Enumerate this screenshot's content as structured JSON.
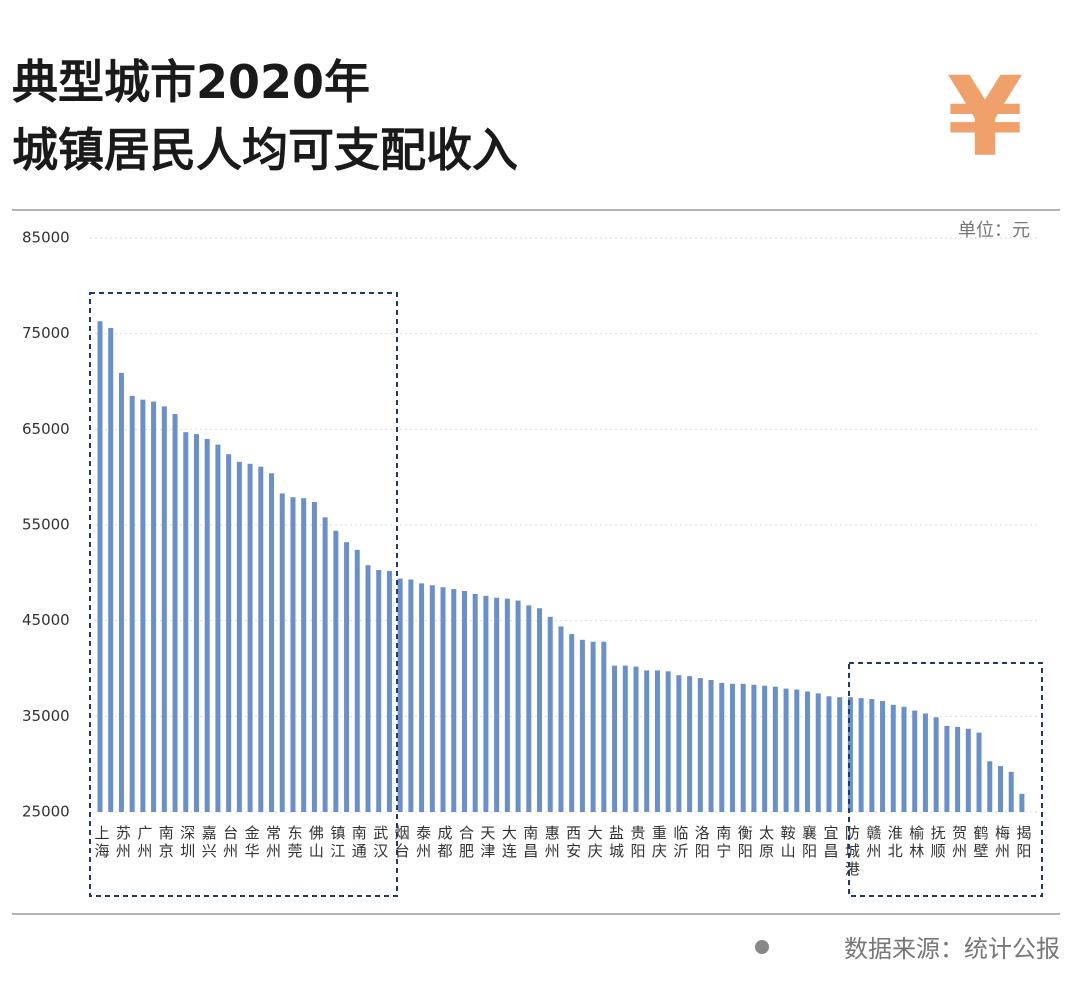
{
  "chart_data": {
    "type": "bar",
    "title": [
      "典型城市2020年",
      "城镇居民人均可支配收入"
    ],
    "icon": "¥",
    "unit_label": "单位：元",
    "source": "数据来源：统计公报",
    "color": "#6b8fc7",
    "grid": true,
    "ylim": [
      25000,
      85000
    ],
    "yticks": [
      25000,
      35000,
      45000,
      55000,
      65000,
      75000,
      85000
    ],
    "categories": [
      "上海",
      null,
      "苏州",
      null,
      "广州",
      null,
      "南京",
      null,
      "深圳",
      null,
      "嘉兴",
      null,
      "台州",
      null,
      "金华",
      null,
      "常州",
      null,
      "东莞",
      null,
      "佛山",
      null,
      "镇江",
      null,
      "南通",
      null,
      "武汉",
      null,
      "烟台",
      null,
      "泰州",
      null,
      "成都",
      null,
      "合肥",
      null,
      "天津",
      null,
      "大连",
      null,
      "南昌",
      null,
      "惠州",
      null,
      "西安",
      null,
      "大庆",
      null,
      "盐城",
      null,
      "贵阳",
      null,
      "重庆",
      null,
      "临沂",
      null,
      "洛阳",
      null,
      "南宁",
      null,
      "衡阳",
      null,
      "太原",
      null,
      "鞍山",
      null,
      "襄阳",
      null,
      "宜昌",
      null,
      "防城港",
      null,
      "赣州",
      null,
      "淮北",
      null,
      "榆林",
      null,
      "抚顺",
      null,
      "贺州",
      null,
      "鹤壁",
      null,
      "梅州",
      null,
      "揭阳"
    ],
    "values": [
      76300,
      75600,
      70900,
      68500,
      68100,
      67900,
      67400,
      66600,
      64700,
      64500,
      64000,
      63400,
      62400,
      61600,
      61400,
      61100,
      60400,
      58300,
      57900,
      57800,
      57400,
      55800,
      54400,
      53200,
      52400,
      50800,
      50300,
      50200,
      49400,
      49300,
      48900,
      48700,
      48500,
      48300,
      48100,
      47800,
      47600,
      47400,
      47300,
      47100,
      46600,
      46300,
      45400,
      44400,
      43600,
      43000,
      42800,
      42800,
      40300,
      40300,
      40200,
      39800,
      39800,
      39700,
      39300,
      39200,
      39000,
      38800,
      38500,
      38400,
      38400,
      38300,
      38200,
      38100,
      37900,
      37800,
      37600,
      37400,
      37100,
      37000,
      37000,
      36900,
      36800,
      36600,
      36200,
      36000,
      35600,
      35300,
      34900,
      34000,
      33900,
      33700,
      33300,
      30300,
      29800,
      29200,
      26900
    ]
  }
}
